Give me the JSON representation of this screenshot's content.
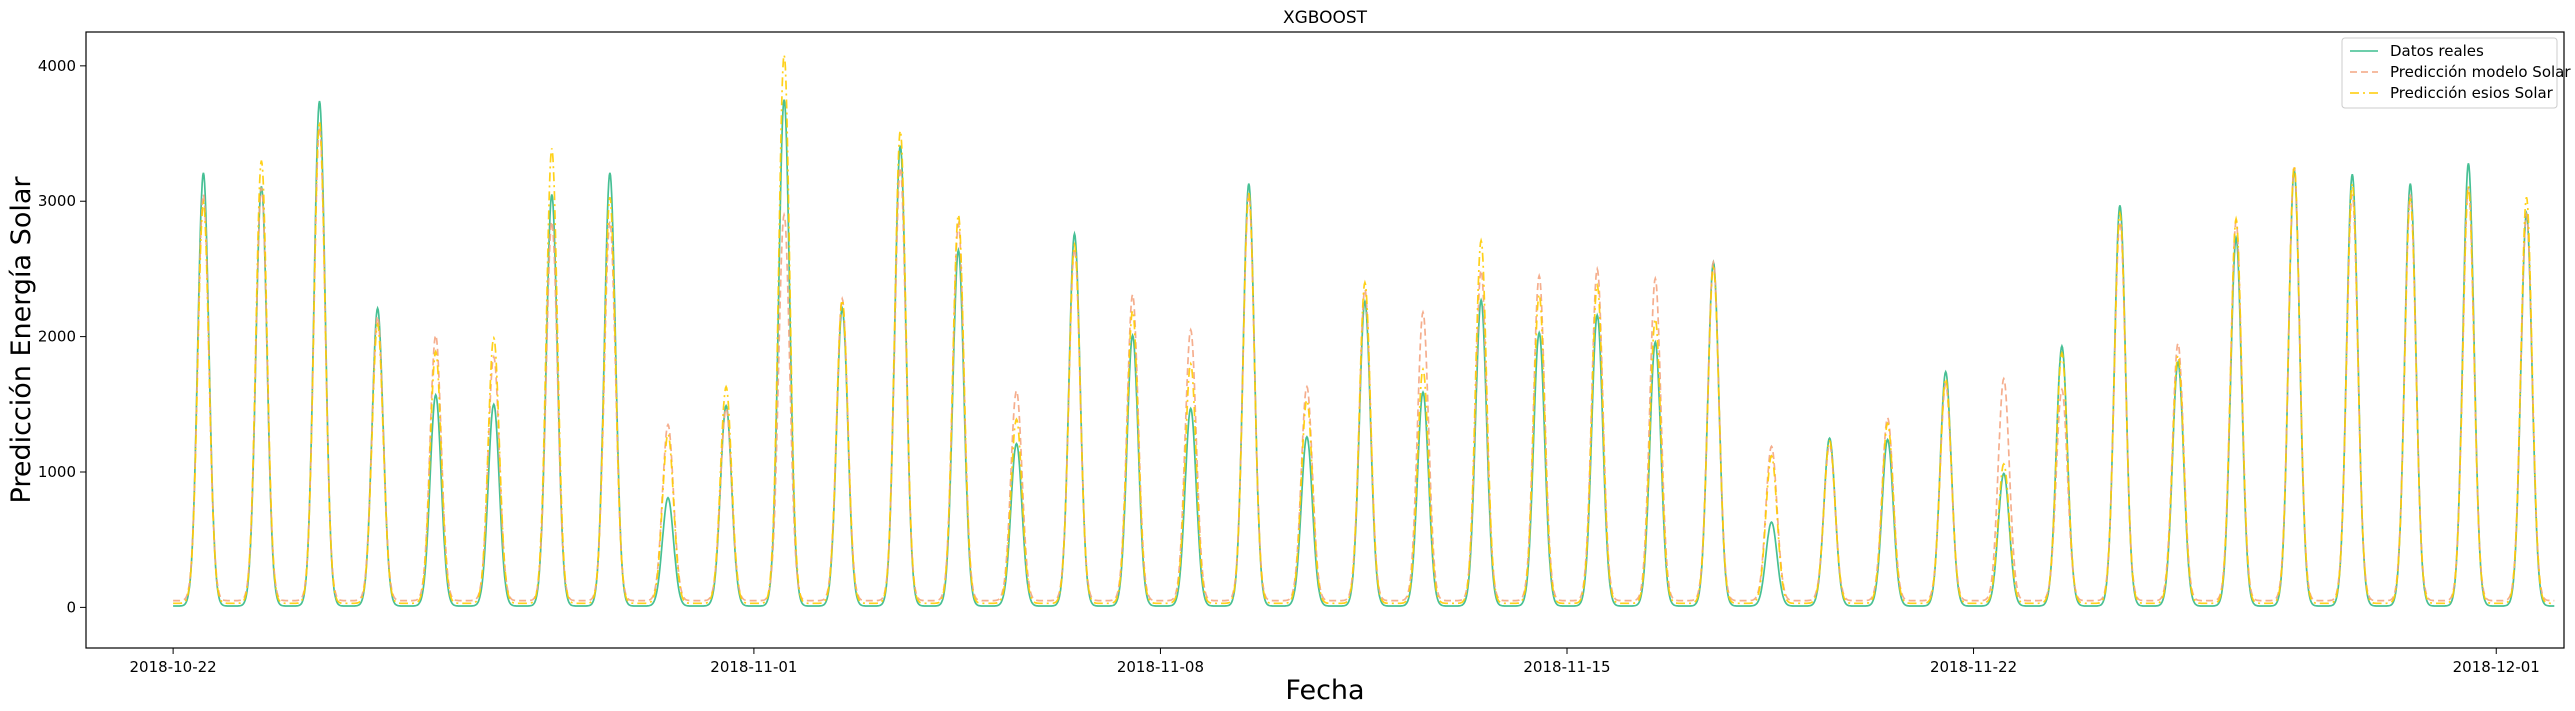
{
  "chart_data": {
    "type": "line",
    "title": "XGBOOST",
    "xlabel": "Fecha",
    "ylabel": "Predicción Energía Solar",
    "xlim": [
      "2018-10-20T12:00",
      "2018-12-02T04:00"
    ],
    "ylim": [
      -300,
      4250
    ],
    "x_ticks": [
      "2018-10-22",
      "2018-11-01",
      "2018-11-08",
      "2018-11-15",
      "2018-11-22",
      "2018-12-01"
    ],
    "y_ticks": [
      0,
      1000,
      2000,
      3000,
      4000
    ],
    "grid": false,
    "legend_position": "top-right",
    "start_date": "2018-10-22",
    "noon_hour": 12.5,
    "series": [
      {
        "name": "Datos reales",
        "color": "#3dbd8f",
        "style": "solid",
        "daily_peaks": [
          3200,
          3100,
          3730,
          2200,
          1560,
          1490,
          3040,
          3200,
          800,
          1480,
          3740,
          2200,
          3400,
          2630,
          1200,
          2750,
          2000,
          1460,
          3120,
          1250,
          2250,
          1580,
          2260,
          2020,
          2150,
          1950,
          2540,
          620,
          1240,
          1230,
          1730,
          980,
          1920,
          2960,
          1800,
          2720,
          3220,
          3190,
          3120,
          3270,
          2900
        ],
        "night_level": 10
      },
      {
        "name": "Predicción modelo Solar",
        "color": "#f4a582",
        "style": "dashed",
        "daily_peaks": [
          3000,
          3050,
          3500,
          2100,
          1960,
          1800,
          2800,
          2800,
          1300,
          1420,
          2850,
          2230,
          3200,
          2780,
          1550,
          2600,
          2260,
          2000,
          3000,
          1580,
          2300,
          2130,
          2440,
          2400,
          2450,
          2380,
          2500,
          1140,
          1150,
          1350,
          1600,
          1640,
          1560,
          2800,
          1900,
          2800,
          3200,
          3000,
          3000,
          3050,
          2850
        ],
        "night_level": 50
      },
      {
        "name": "Predicción esios Solar",
        "color": "#ffcc00",
        "style": "dashdot",
        "daily_peaks": [
          2960,
          3270,
          3560,
          2060,
          1860,
          1960,
          3360,
          3000,
          1250,
          1600,
          4050,
          2240,
          3490,
          2870,
          1360,
          2650,
          2160,
          1770,
          3030,
          1500,
          2370,
          1730,
          2680,
          2280,
          2350,
          2100,
          2480,
          1090,
          1200,
          1330,
          1660,
          1030,
          1850,
          2880,
          1830,
          2840,
          3230,
          3100,
          2990,
          3080,
          3000
        ],
        "night_level": 30
      }
    ]
  }
}
